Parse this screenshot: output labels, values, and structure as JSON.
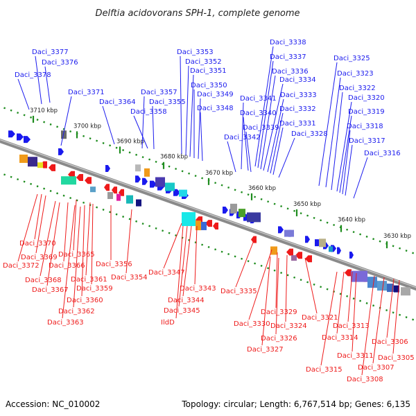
{
  "title": "Delftia acidovorans SPH-1, complete genome",
  "footer": {
    "accession": "Accession: NC_010002",
    "topology": "Topology: circular; Length: 6,767,514 bp; Genes: 6,135"
  },
  "colors": {
    "forward": "#1a1aee",
    "reverse": "#ee1a1a",
    "backbone": "#777777",
    "ticks": "#1e8c1e"
  },
  "kbp_ticks": [
    "3710 kbp",
    "3700 kbp",
    "3690 kbp",
    "3680 kbp",
    "3670 kbp",
    "3660 kbp",
    "3650 kbp",
    "3640 kbp",
    "3630 kbp"
  ],
  "forward_genes": [
    "Daci_3377",
    "Daci_3376",
    "Daci_3378",
    "Daci_3371",
    "Daci_3364",
    "Daci_3357",
    "Daci_3355",
    "Daci_3358",
    "Daci_3353",
    "Daci_3352",
    "Daci_3351",
    "Daci_3350",
    "Daci_3349",
    "Daci_3348",
    "Daci_3338",
    "Daci_3337",
    "Daci_3336",
    "Daci_3334",
    "Daci_3341",
    "Daci_3333",
    "Daci_3340",
    "Daci_3332",
    "Daci_3339",
    "Daci_3331",
    "Daci_3342",
    "Daci_3328",
    "Daci_3325",
    "Daci_3323",
    "Daci_3322",
    "Daci_3320",
    "Daci_3319",
    "Daci_3318",
    "Daci_3317",
    "Daci_3316"
  ],
  "reverse_genes": [
    "Daci_3370",
    "Daci_3369",
    "Daci_3372",
    "Daci_3365",
    "Daci_3366",
    "Daci_3368",
    "Daci_3361",
    "Daci_3356",
    "Daci_3367",
    "Daci_3359",
    "Daci_3354",
    "Daci_3360",
    "Daci_3362",
    "Daci_3363",
    "Daci_3347",
    "Daci_3343",
    "Daci_3344",
    "Daci_3345",
    "IldD",
    "Daci_3335",
    "Daci_3329",
    "Daci_3330",
    "Daci_3324",
    "Daci_3321",
    "Daci_3326",
    "Daci_3327",
    "Daci_3313",
    "Daci_3314",
    "Daci_3311",
    "Daci_3315",
    "Daci_3306",
    "Daci_3305",
    "Daci_3307",
    "Daci_3308"
  ]
}
